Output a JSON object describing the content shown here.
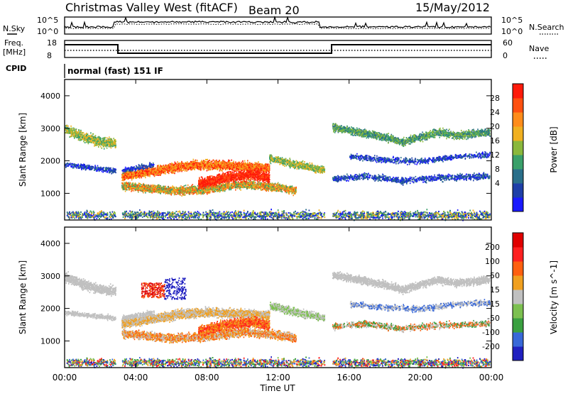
{
  "header": {
    "title": "Christmas Valley West (fitACF)",
    "beam": "Beam 20",
    "date": "15/May/2012"
  },
  "labels": {
    "nsky": "N.Sky",
    "nsearch": "N.Search",
    "freq_top": "Freq.",
    "freq_bottom": "[MHz]",
    "nave": "Nave",
    "cpid": "CPID",
    "mode": "normal (fast) 151 IF"
  },
  "strip_ticks": {
    "noise_left": [
      "10^5",
      "10^0"
    ],
    "noise_right": [
      "10^5",
      "10^0"
    ],
    "freq_left": [
      "18",
      "8"
    ],
    "freq_right": [
      "60",
      "0"
    ]
  },
  "chart_data": [
    {
      "type": "heatmap",
      "title": "",
      "quantity": "Power",
      "xlabel": "",
      "ylabel": "Slant Range [km]",
      "colorbar_label": "Power [dB]",
      "colorbar_ticks": [
        "28",
        "24",
        "20",
        "16",
        "12",
        "8",
        "4"
      ],
      "colorbar_colors": [
        "#1a1aff",
        "#1e3fa8",
        "#2a6f8a",
        "#3aa06a",
        "#8ab83c",
        "#f0b020",
        "#ff8c1a",
        "#ff5010",
        "#ff1a0a"
      ],
      "x_ticks": [
        "00:00",
        "04:00",
        "08:00",
        "12:00",
        "16:00",
        "20:00",
        "00:00"
      ],
      "y_ticks": [
        "1000",
        "2000",
        "3000",
        "4000"
      ],
      "xlim": [
        0,
        24
      ],
      "ylim": [
        180,
        4500
      ]
    },
    {
      "type": "heatmap",
      "title": "",
      "quantity": "Velocity",
      "xlabel": "Time UT",
      "ylabel": "Slant Range [km]",
      "colorbar_label": "Velocity [m s^-1]",
      "colorbar_ticks": [
        "200",
        "100",
        "50",
        "15",
        "-15",
        "-50",
        "-100",
        "-200"
      ],
      "colorbar_colors": [
        "#2020c0",
        "#3868d8",
        "#3aa040",
        "#7cc050",
        "#c0c0c0",
        "#f0a020",
        "#ff6010",
        "#ff2020",
        "#e00000"
      ],
      "x_ticks": [
        "00:00",
        "04:00",
        "08:00",
        "12:00",
        "16:00",
        "20:00",
        "00:00"
      ],
      "y_ticks": [
        "1000",
        "2000",
        "3000",
        "4000"
      ],
      "xlim": [
        0,
        24
      ],
      "ylim": [
        180,
        4500
      ]
    }
  ]
}
